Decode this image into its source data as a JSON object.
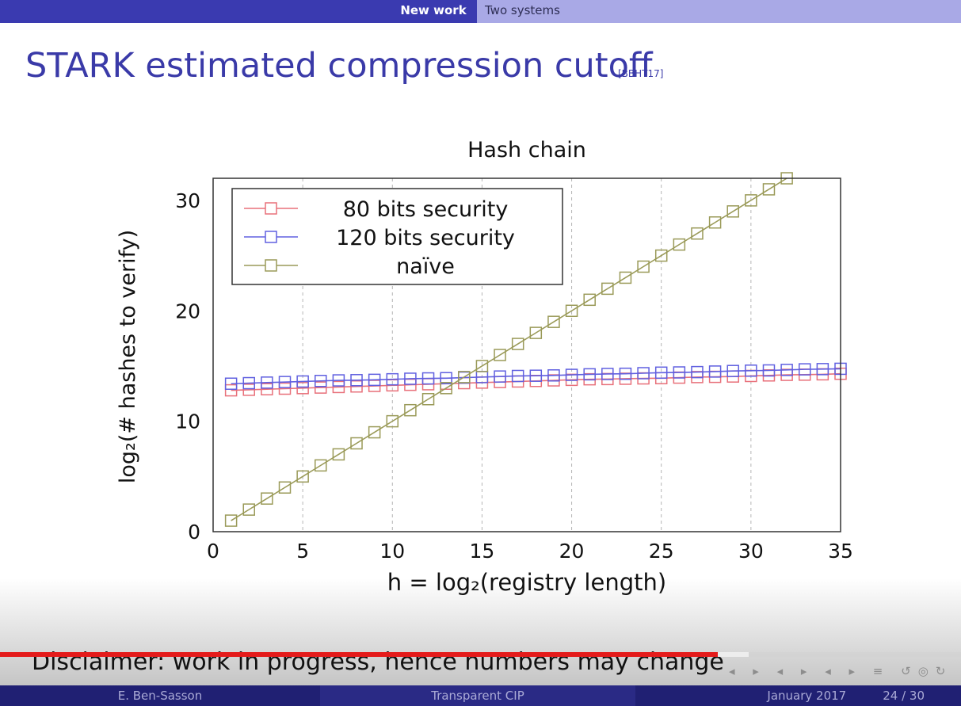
{
  "header": {
    "tab_active": "New work",
    "tab_inactive": "Two systems"
  },
  "slide": {
    "title": "STARK estimated compression cutoff",
    "citation": "[BBHT17]",
    "disclaimer": "Disclaimer: work in progress, hence numbers may change"
  },
  "chart_data": {
    "type": "line",
    "title": "Hash chain",
    "xlabel": "h = log₂(registry length)",
    "ylabel": "log₂(# hashes to verify)",
    "xlim": [
      0,
      35
    ],
    "ylim": [
      0,
      32
    ],
    "xticks": [
      0,
      5,
      10,
      15,
      20,
      25,
      30,
      35
    ],
    "yticks": [
      0,
      10,
      20,
      30
    ],
    "grid": "vertical-dashed",
    "legend_position": "top-left",
    "series": [
      {
        "name": "80 bits security",
        "color": "#e8707a",
        "marker": "square",
        "x": [
          1,
          2,
          3,
          4,
          5,
          6,
          7,
          8,
          9,
          10,
          11,
          12,
          13,
          14,
          15,
          16,
          17,
          18,
          19,
          20,
          21,
          22,
          23,
          24,
          25,
          26,
          27,
          28,
          29,
          30,
          31,
          32,
          33,
          34,
          35
        ],
        "y": [
          12.8,
          12.85,
          12.9,
          12.95,
          13.0,
          13.05,
          13.1,
          13.15,
          13.2,
          13.25,
          13.3,
          13.35,
          13.4,
          13.45,
          13.5,
          13.55,
          13.6,
          13.65,
          13.7,
          13.75,
          13.8,
          13.82,
          13.85,
          13.88,
          13.9,
          13.95,
          14.0,
          14.02,
          14.05,
          14.1,
          14.15,
          14.2,
          14.22,
          14.25,
          14.3
        ]
      },
      {
        "name": "120 bits security",
        "color": "#6060e0",
        "marker": "square",
        "x": [
          1,
          2,
          3,
          4,
          5,
          6,
          7,
          8,
          9,
          10,
          11,
          12,
          13,
          14,
          15,
          16,
          17,
          18,
          19,
          20,
          21,
          22,
          23,
          24,
          25,
          26,
          27,
          28,
          29,
          30,
          31,
          32,
          33,
          34,
          35
        ],
        "y": [
          13.4,
          13.45,
          13.5,
          13.55,
          13.6,
          13.65,
          13.7,
          13.72,
          13.75,
          13.8,
          13.85,
          13.88,
          13.9,
          13.95,
          14.0,
          14.05,
          14.1,
          14.12,
          14.15,
          14.2,
          14.25,
          14.28,
          14.3,
          14.35,
          14.4,
          14.42,
          14.45,
          14.5,
          14.55,
          14.58,
          14.6,
          14.65,
          14.7,
          14.72,
          14.75
        ]
      },
      {
        "name": "naïve",
        "color": "#9a9a58",
        "marker": "square",
        "x": [
          1,
          2,
          3,
          4,
          5,
          6,
          7,
          8,
          9,
          10,
          11,
          12,
          13,
          14,
          15,
          16,
          17,
          18,
          19,
          20,
          21,
          22,
          23,
          24,
          25,
          26,
          27,
          28,
          29,
          30,
          31,
          32
        ],
        "y": [
          1,
          2,
          3,
          4,
          5,
          6,
          7,
          8,
          9,
          10,
          11,
          12,
          13,
          14,
          15,
          16,
          17,
          18,
          19,
          20,
          21,
          22,
          23,
          24,
          25,
          26,
          27,
          28,
          29,
          30,
          31,
          32
        ]
      }
    ]
  },
  "footer": {
    "author": "E. Ben-Sasson",
    "talk_title": "Transparent CIP",
    "date": "January 2017",
    "page": "24 / 30"
  },
  "player": {
    "progress": 0.747,
    "buffered": 0.779
  },
  "nav": {
    "icons": [
      "nav-frame-left-icon",
      "nav-frame-right-icon",
      "nav-subsection-left-icon",
      "nav-subsection-right-icon",
      "nav-section-left-icon",
      "nav-section-right-icon",
      "nav-outline-icon",
      "nav-search-icon"
    ],
    "glyphs": "◂ ▸ ◂ ▸ ◂ ▸ ≡ ↺◎↻"
  }
}
